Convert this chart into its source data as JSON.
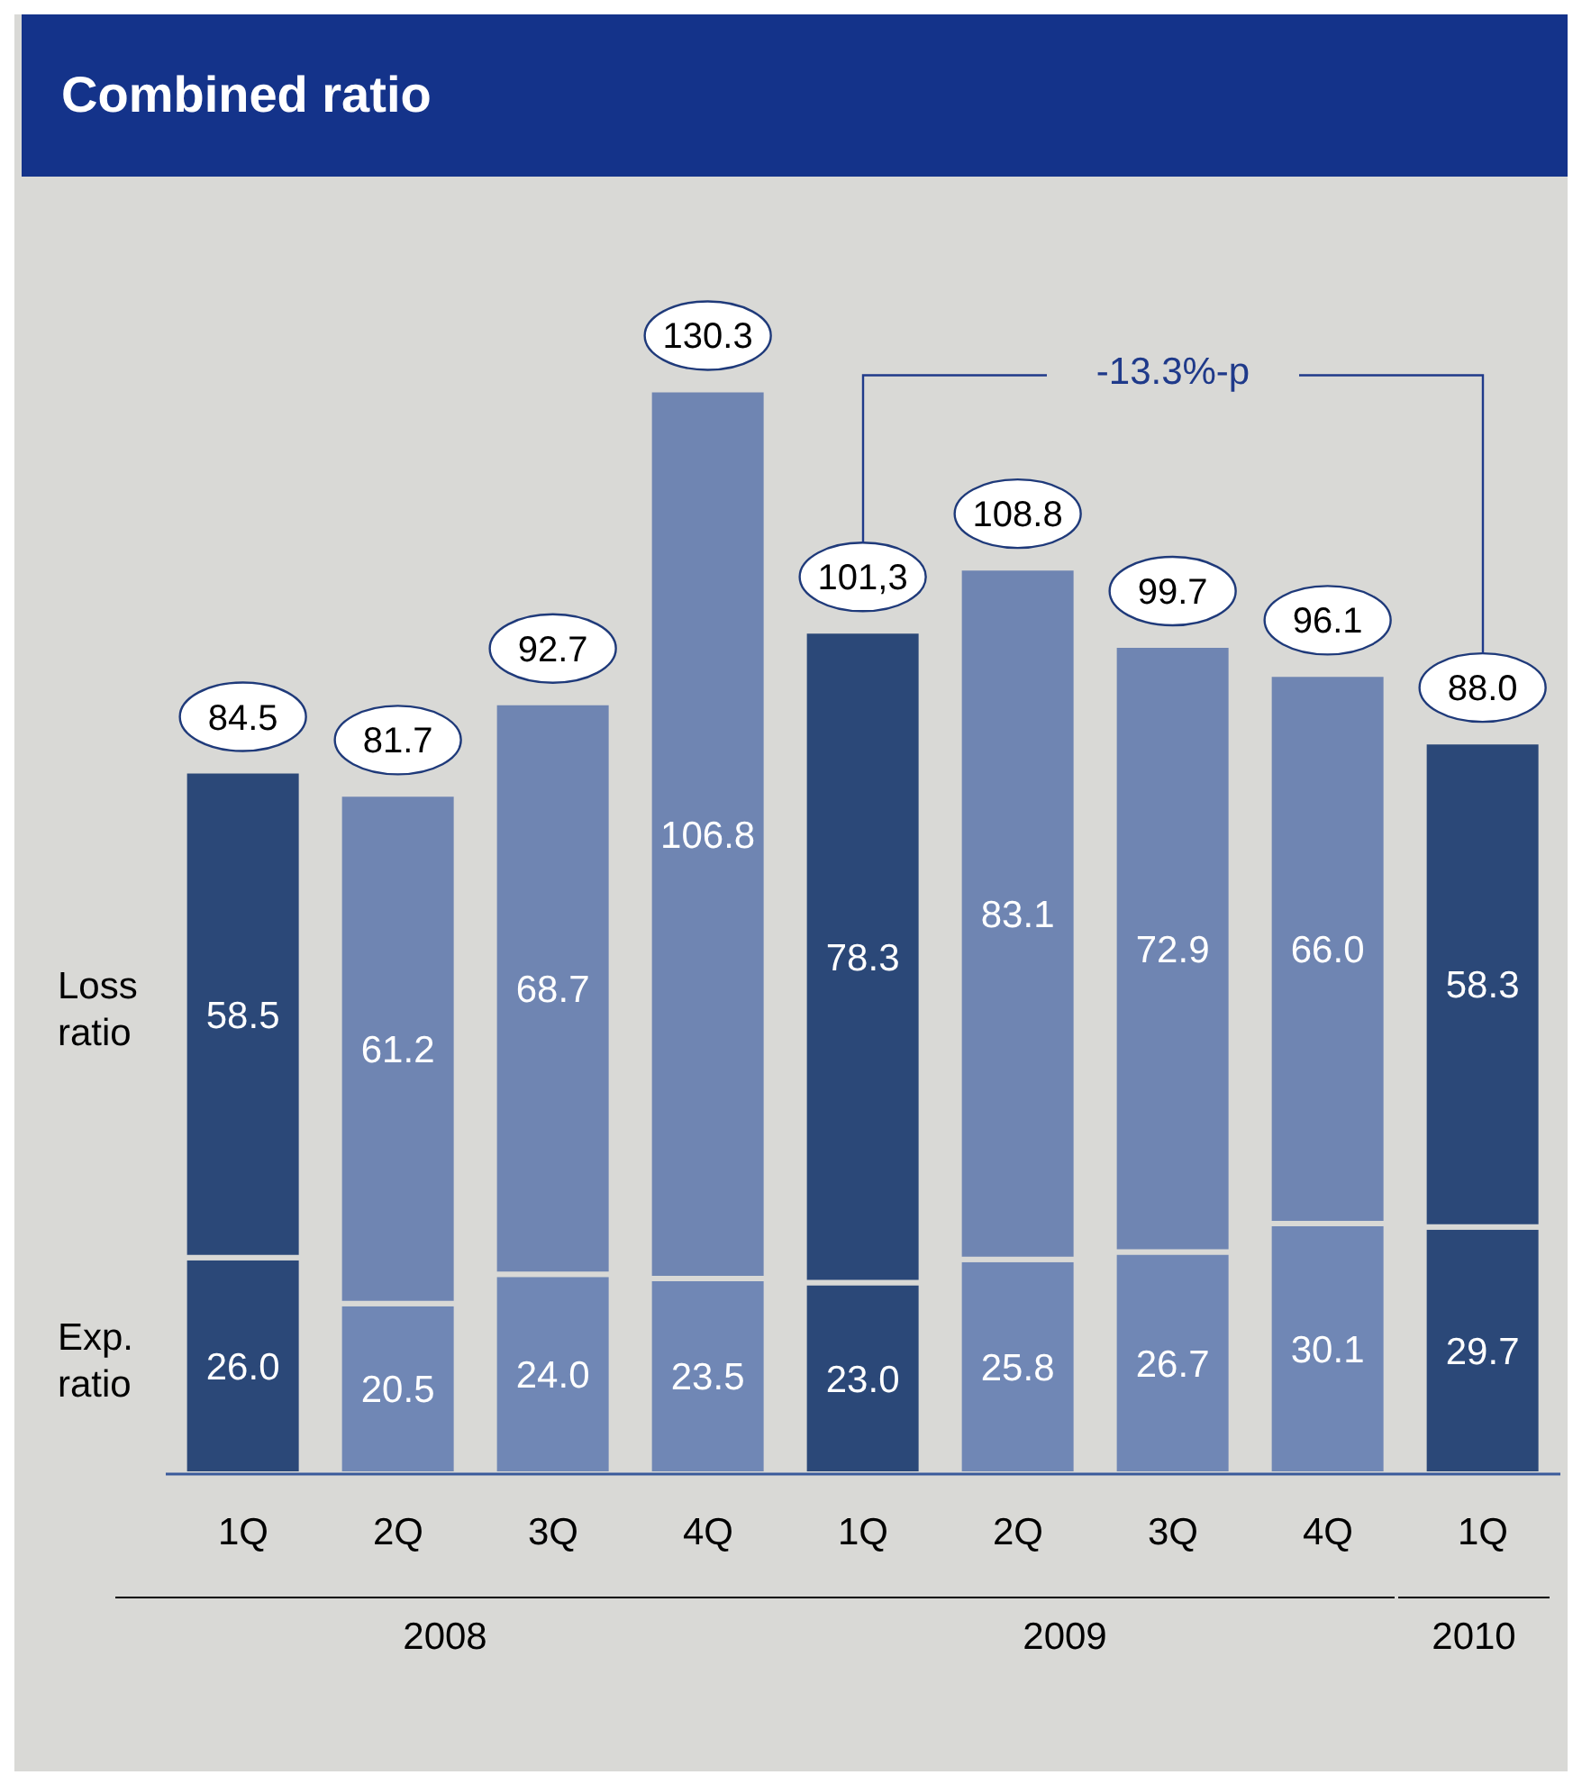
{
  "chart_data": {
    "type": "bar",
    "title": "Combined ratio",
    "stacked": true,
    "categories": [
      "1Q",
      "2Q",
      "3Q",
      "4Q",
      "1Q",
      "2Q",
      "3Q",
      "4Q",
      "1Q"
    ],
    "series": [
      {
        "name": "Exp. ratio",
        "colors": [
          "#2b4878",
          "#7087b5",
          "#7087b5",
          "#7087b5",
          "#2b4878",
          "#7087b5",
          "#7087b5",
          "#7087b5",
          "#2b4878"
        ],
        "values": [
          26.0,
          20.5,
          24.0,
          23.5,
          23.0,
          25.8,
          26.7,
          30.1,
          29.7
        ],
        "value_labels": [
          "26.0",
          "20.5",
          "24.0",
          "23.5",
          "23.0",
          "25.8",
          "26.7",
          "30.1",
          "29.7"
        ]
      },
      {
        "name": "Loss ratio",
        "colors": [
          "#2b4878",
          "#6f85b2",
          "#6f85b2",
          "#6f85b2",
          "#2b4878",
          "#6f85b2",
          "#6f85b2",
          "#6f85b2",
          "#2b4878"
        ],
        "values": [
          58.5,
          61.2,
          68.7,
          106.8,
          78.3,
          83.1,
          72.9,
          66.0,
          58.3
        ],
        "value_labels": [
          "58.5",
          "61.2",
          "68.7",
          "106.8",
          "78.3",
          "83.1",
          "72.9",
          "66.0",
          "58.3"
        ]
      }
    ],
    "totals": [
      "84.5",
      "81.7",
      "92.7",
      "130.3",
      "101,3",
      "108.8",
      "99.7",
      "96.1",
      "88.0"
    ],
    "annotations": [
      "-13.3%-p",
      "2008",
      "2009",
      "2010"
    ]
  }
}
